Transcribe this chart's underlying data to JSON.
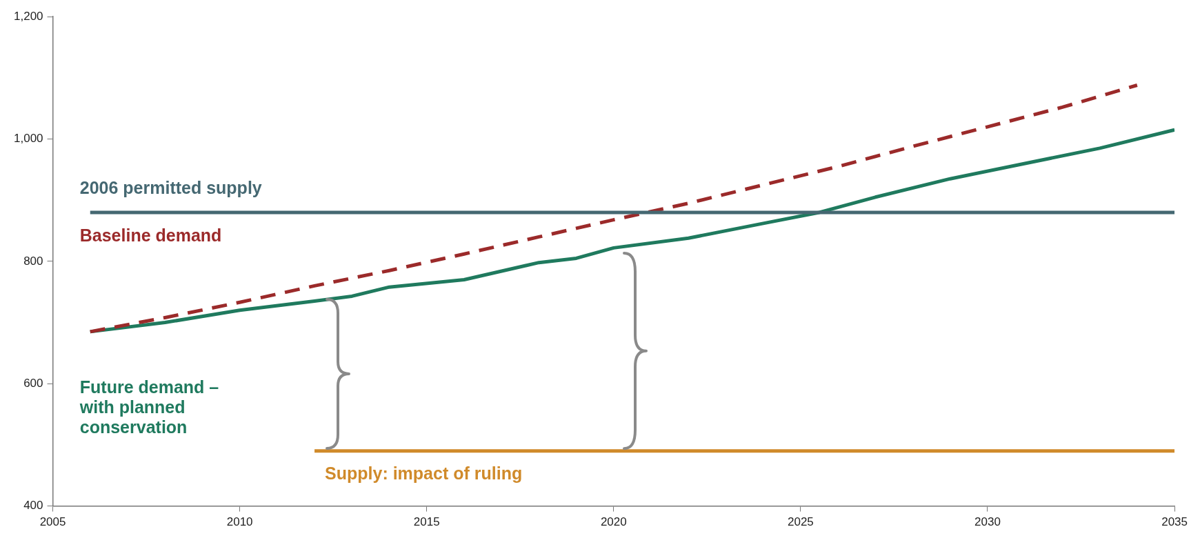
{
  "chart_data": {
    "type": "line",
    "xlim": [
      2005,
      2035
    ],
    "xticks": [
      2005,
      2010,
      2015,
      2020,
      2025,
      2030,
      2035
    ],
    "ylim": [
      400,
      1200
    ],
    "yticks": [
      400,
      600,
      800,
      {
        "value": 1000,
        "label": "1,000"
      },
      {
        "value": 1200,
        "label": "1,200"
      }
    ],
    "grid": false,
    "legend": false,
    "series": [
      {
        "name": "2006 permitted supply",
        "color": "#456872",
        "x": [
          2006,
          2035
        ],
        "values": [
          880,
          880
        ]
      },
      {
        "name": "Baseline demand",
        "color": "#9b2a2a",
        "line_style": "dashed",
        "x": [
          2006,
          2008,
          2010,
          2012,
          2014,
          2016,
          2018,
          2020,
          2022,
          2024,
          2026,
          2028,
          2030,
          2032,
          2034
        ],
        "values": [
          685,
          708,
          733,
          760,
          785,
          812,
          840,
          868,
          895,
          925,
          955,
          988,
          1020,
          1052,
          1088
        ]
      },
      {
        "name": "Future demand – with planned conservation",
        "color": "#1f7a5e",
        "x": [
          2006,
          2008,
          2010,
          2012,
          2013,
          2014,
          2016,
          2018,
          2019,
          2020,
          2022,
          2024,
          2025.5,
          2027,
          2029,
          2031,
          2033,
          2035
        ],
        "values": [
          685,
          700,
          720,
          735,
          743,
          758,
          770,
          798,
          805,
          822,
          838,
          862,
          880,
          905,
          935,
          960,
          985,
          1015
        ]
      },
      {
        "name": "Supply: impact of ruling",
        "color": "#d08a2a",
        "x": [
          2012,
          2035
        ],
        "values": [
          490,
          490
        ]
      }
    ]
  }
}
